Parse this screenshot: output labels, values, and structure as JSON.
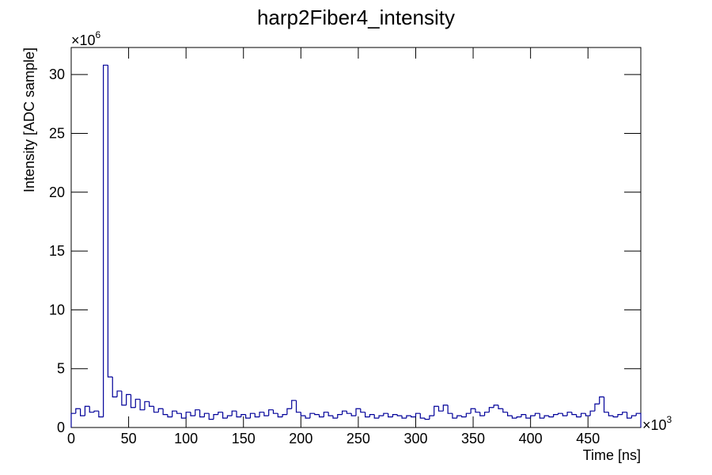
{
  "chart_data": {
    "type": "histogram",
    "title": "harp2Fiber4_intensity",
    "x_label": "Time [ns]",
    "y_label": "Intensity [ADC sample]",
    "x_multiplier": {
      "base": "×10",
      "exponent": "3"
    },
    "y_multiplier": {
      "base": "×10",
      "exponent": "6"
    },
    "color": "#000099",
    "xlim": [
      0,
      496
    ],
    "ylim": [
      0,
      32.3
    ],
    "xticks": [
      0,
      50,
      100,
      150,
      200,
      250,
      300,
      350,
      400,
      450
    ],
    "yticks": [
      0,
      5,
      10,
      15,
      20,
      25,
      30
    ],
    "bins": [
      0,
      4,
      8,
      12,
      16,
      20,
      24,
      28,
      32,
      36,
      40,
      44,
      48,
      52,
      56,
      60,
      64,
      68,
      72,
      76,
      80,
      84,
      88,
      92,
      96,
      100,
      104,
      108,
      112,
      116,
      120,
      124,
      128,
      132,
      136,
      140,
      144,
      148,
      152,
      156,
      160,
      164,
      168,
      172,
      176,
      180,
      184,
      188,
      192,
      196,
      200,
      204,
      208,
      212,
      216,
      220,
      224,
      228,
      232,
      236,
      240,
      244,
      248,
      252,
      256,
      260,
      264,
      268,
      272,
      276,
      280,
      284,
      288,
      292,
      296,
      300,
      304,
      308,
      312,
      316,
      320,
      324,
      328,
      332,
      336,
      340,
      344,
      348,
      352,
      356,
      360,
      364,
      368,
      372,
      376,
      380,
      384,
      388,
      392,
      396,
      400,
      404,
      408,
      412,
      416,
      420,
      424,
      428,
      432,
      436,
      440,
      444,
      448,
      452,
      456,
      460,
      464,
      468,
      472,
      476,
      480,
      484,
      488,
      492,
      496
    ],
    "values": [
      1.2,
      1.6,
      1.0,
      1.8,
      1.3,
      1.4,
      0.9,
      30.8,
      4.3,
      2.6,
      3.1,
      1.9,
      2.8,
      1.7,
      2.4,
      1.5,
      2.2,
      1.8,
      1.3,
      1.6,
      1.1,
      0.9,
      1.4,
      1.2,
      0.8,
      1.3,
      1.0,
      1.5,
      0.9,
      1.2,
      0.7,
      1.1,
      1.3,
      0.8,
      1.0,
      1.4,
      0.9,
      1.1,
      0.8,
      1.2,
      0.9,
      1.3,
      1.0,
      1.5,
      1.2,
      0.9,
      1.1,
      1.6,
      2.3,
      1.3,
      1.0,
      0.8,
      1.2,
      1.1,
      0.9,
      1.3,
      1.0,
      0.8,
      1.1,
      1.4,
      1.2,
      1.0,
      1.6,
      1.3,
      0.9,
      1.1,
      0.8,
      1.0,
      1.2,
      0.9,
      1.1,
      1.0,
      0.8,
      1.0,
      0.9,
      1.2,
      0.8,
      0.7,
      1.0,
      1.8,
      1.4,
      1.9,
      1.2,
      0.8,
      1.0,
      0.9,
      1.2,
      1.6,
      1.3,
      1.0,
      1.3,
      1.7,
      1.9,
      1.6,
      1.3,
      1.0,
      0.8,
      0.9,
      1.1,
      0.8,
      1.0,
      1.2,
      0.8,
      1.0,
      0.9,
      1.1,
      1.2,
      1.0,
      1.3,
      1.1,
      0.9,
      1.2,
      1.0,
      1.4,
      2.0,
      2.6,
      1.3,
      1.0,
      0.9,
      1.1,
      1.3,
      0.8,
      1.0,
      1.2
    ]
  }
}
